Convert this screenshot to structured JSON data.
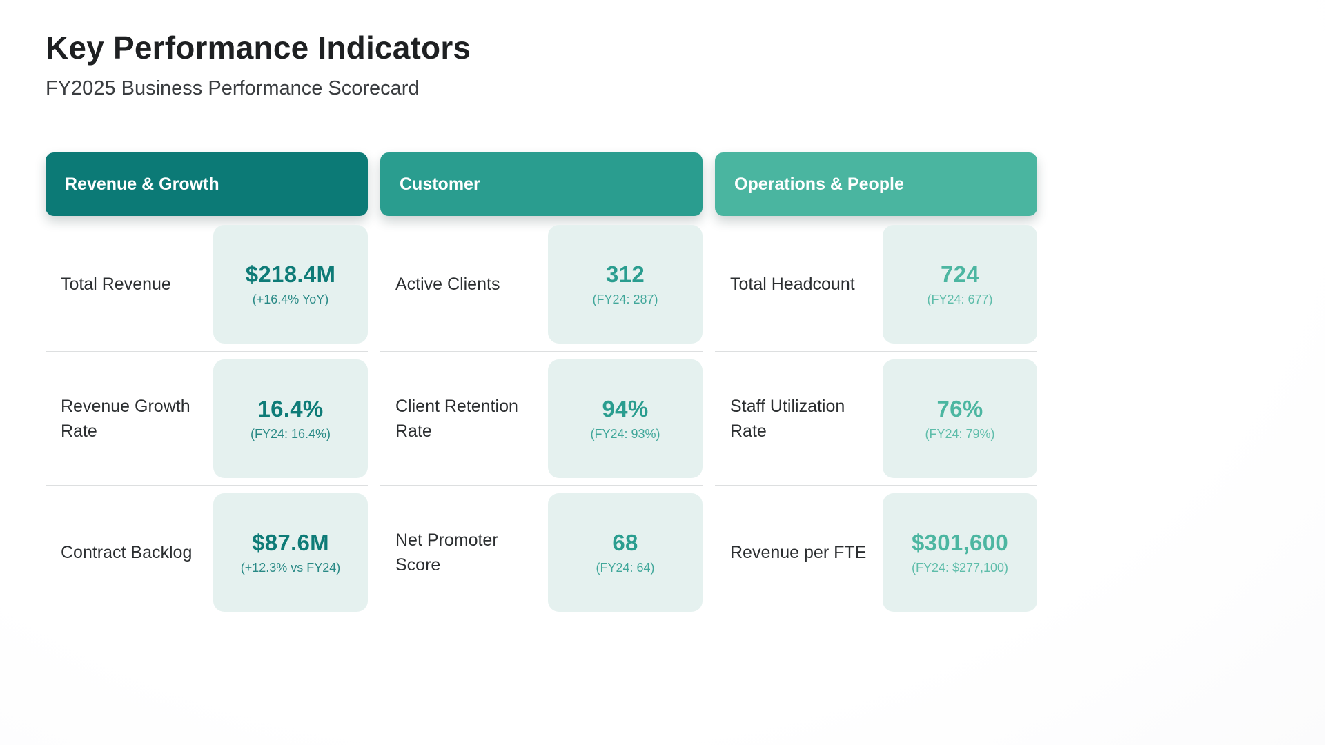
{
  "header": {
    "title": "Key Performance Indicators",
    "subtitle": "FY2025 Business Performance Scorecard"
  },
  "colors": {
    "accent_revenue_growth": "#0c7a76",
    "accent_customer": "#2a9d8f",
    "accent_operations_people": "#4ab5a0",
    "value_card_background": "#e5f1ef",
    "divider": "#dddfe0",
    "title_text": "#1e2022",
    "label_text": "#2b2e30"
  },
  "chart_data": {
    "type": "table",
    "title": "Key Performance Indicators",
    "subtitle": "FY2025 Business Performance Scorecard",
    "groups": [
      {
        "header": "Revenue & Growth",
        "accent": "#0c7a76",
        "rows": [
          {
            "label": "Total Revenue",
            "value": "$218.4M",
            "sub": "(+16.4% YoY)"
          },
          {
            "label": "Revenue Growth Rate",
            "value": "16.4%",
            "sub": "(FY24: 16.4%)"
          },
          {
            "label": "Contract Backlog",
            "value": "$87.6M",
            "sub": "(+12.3% vs FY24)"
          }
        ]
      },
      {
        "header": "Customer",
        "accent": "#2a9d8f",
        "rows": [
          {
            "label": "Active Clients",
            "value": "312",
            "sub": "(FY24: 287)"
          },
          {
            "label": "Client Retention Rate",
            "value": "94%",
            "sub": "(FY24: 93%)"
          },
          {
            "label": "Net Promoter Score",
            "value": "68",
            "sub": "(FY24: 64)"
          }
        ]
      },
      {
        "header": "Operations & People",
        "accent": "#4ab5a0",
        "rows": [
          {
            "label": "Total Headcount",
            "value": "724",
            "sub": "(FY24: 677)"
          },
          {
            "label": "Staff Utilization Rate",
            "value": "76%",
            "sub": "(FY24: 79%)"
          },
          {
            "label": "Revenue per FTE",
            "value": "$301,600",
            "sub": "(FY24: $277,100)"
          }
        ]
      }
    ]
  }
}
